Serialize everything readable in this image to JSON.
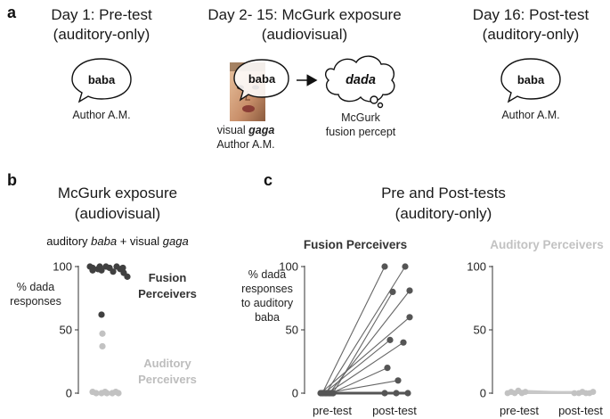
{
  "panel_a": {
    "letter": "a",
    "stages": [
      {
        "title_l1": "Day 1: Pre-test",
        "title_l2": "(auditory-only)",
        "bubble": "baba",
        "caption": "Author A.M."
      },
      {
        "title_l1": "Day 2- 15: McGurk exposure",
        "title_l2": "(audiovisual)",
        "bubble": "baba",
        "visual_l1_pre": "visual ",
        "visual_l1_em": "gaga",
        "visual_l2": "Author A.M.",
        "thought": "dada",
        "fusion_l1": "McGurk",
        "fusion_l2": "fusion percept"
      },
      {
        "title_l1": "Day 16: Post-test",
        "title_l2": "(auditory-only)",
        "bubble": "baba",
        "caption": "Author A.M."
      }
    ]
  },
  "panel_b": {
    "letter": "b",
    "title_l1": "McGurk exposure",
    "title_l2": "(audiovisual)",
    "stim_pre": "auditory ",
    "stim_em1": "baba",
    "stim_mid": " + visual ",
    "stim_em2": "gaga",
    "ylabel": [
      "% dada",
      "responses"
    ],
    "group_fusion": [
      "Fusion",
      "Perceivers"
    ],
    "group_auditory": [
      "Auditory",
      "Perceivers"
    ],
    "colors": {
      "fusion": "#404040",
      "auditory": "#c2c2c2"
    }
  },
  "panel_c": {
    "letter": "c",
    "title_l1": "Pre and Post-tests",
    "title_l2": "(auditory-only)",
    "ylabel": [
      "% dada",
      "responses",
      "to auditory",
      "baba"
    ],
    "fusion_title": "Fusion Perceivers",
    "auditory_title": "Auditory Perceivers",
    "xticks": [
      "pre-test",
      "post-test"
    ],
    "colors": {
      "fusion": "#555555",
      "auditory": "#c2c2c2"
    }
  },
  "chart_data": [
    {
      "type": "scatter",
      "panel": "b",
      "ylim": [
        0,
        100
      ],
      "yticks": [
        0,
        50,
        100
      ],
      "series": [
        {
          "name": "Fusion Perceivers",
          "values": [
            100,
            99,
            98,
            97,
            100,
            99,
            96,
            100,
            98,
            95,
            92,
            97,
            100,
            99,
            62
          ]
        },
        {
          "name": "Auditory Perceivers",
          "values": [
            47,
            37,
            1,
            0,
            0,
            1,
            0,
            0,
            1,
            0
          ]
        }
      ]
    },
    {
      "type": "line",
      "panel": "c",
      "subplot": "Fusion Perceivers",
      "categories": [
        "pre-test",
        "post-test"
      ],
      "ylim": [
        0,
        100
      ],
      "yticks": [
        0,
        50,
        100
      ],
      "subjects": [
        {
          "pre": 0,
          "post": 100
        },
        {
          "pre": 0,
          "post": 100
        },
        {
          "pre": 0,
          "post": 81
        },
        {
          "pre": 0,
          "post": 80
        },
        {
          "pre": 0,
          "post": 60
        },
        {
          "pre": 0,
          "post": 42
        },
        {
          "pre": 0,
          "post": 40
        },
        {
          "pre": 0,
          "post": 20
        },
        {
          "pre": 0,
          "post": 10
        },
        {
          "pre": 0,
          "post": 0
        },
        {
          "pre": 0,
          "post": 0
        },
        {
          "pre": 0,
          "post": 0
        }
      ]
    },
    {
      "type": "line",
      "panel": "c",
      "subplot": "Auditory Perceivers",
      "categories": [
        "pre-test",
        "post-test"
      ],
      "ylim": [
        0,
        100
      ],
      "yticks": [
        0,
        50,
        100
      ],
      "subjects": [
        {
          "pre": 0,
          "post": 0
        },
        {
          "pre": 1,
          "post": 0
        },
        {
          "pre": 0,
          "post": 1
        },
        {
          "pre": 2,
          "post": 0
        },
        {
          "pre": 0,
          "post": 0
        },
        {
          "pre": 1,
          "post": 1
        }
      ]
    }
  ]
}
